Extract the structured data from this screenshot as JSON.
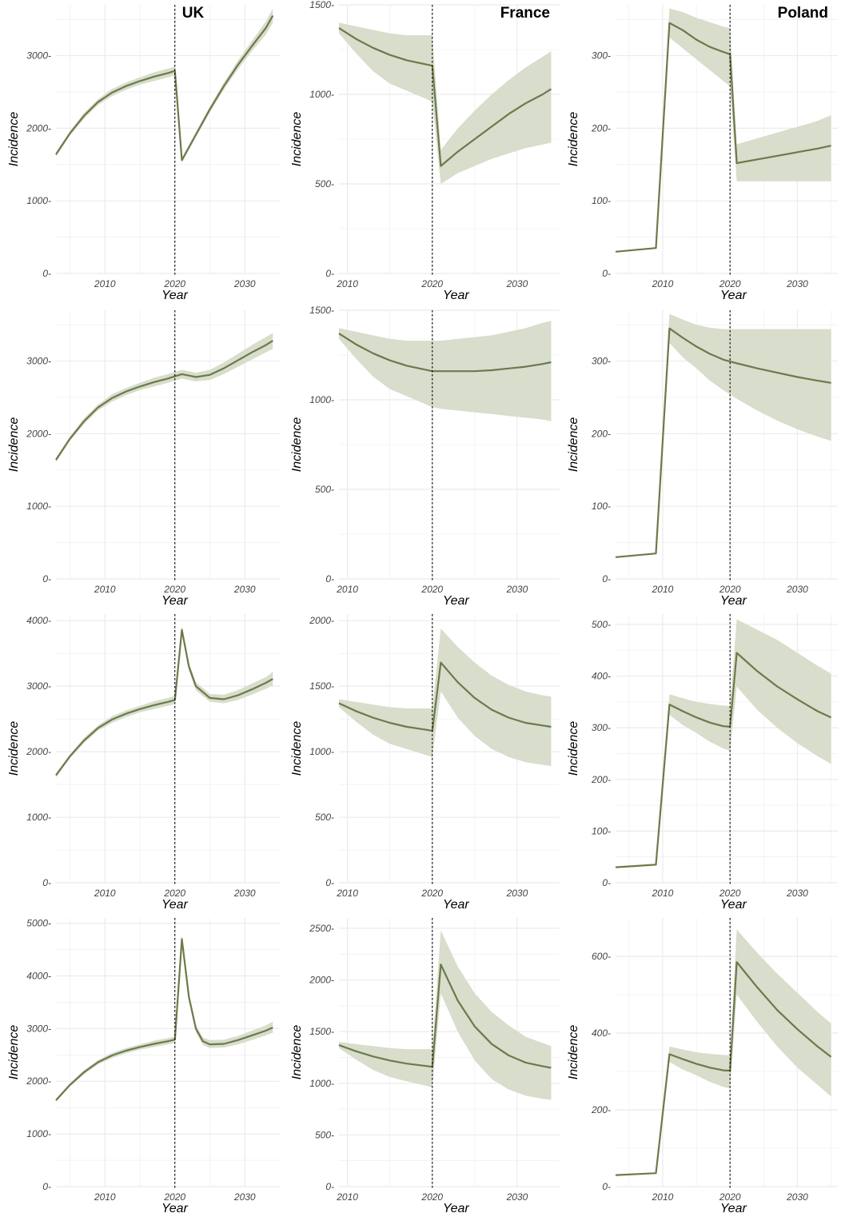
{
  "colors": {
    "line": "#6b7a4a",
    "band": "#d8ddcc",
    "grid": "#ebebeb",
    "vline": "#000000"
  },
  "chart_data": [
    {
      "type": "line",
      "country": "UK",
      "xlabel": "Year",
      "ylabel": "Incidence",
      "xlim": [
        2003,
        2035
      ],
      "ylim": [
        0,
        3700
      ],
      "yticks": [
        0,
        1000,
        2000,
        3000
      ],
      "xticks": [
        2010,
        2020,
        2030
      ],
      "vline": 2020,
      "x": [
        2003,
        2005,
        2007,
        2009,
        2011,
        2013,
        2015,
        2017,
        2019,
        2020,
        2021,
        2023,
        2025,
        2027,
        2029,
        2031,
        2033,
        2034
      ],
      "y": [
        1640,
        1930,
        2170,
        2360,
        2490,
        2580,
        2650,
        2710,
        2760,
        2790,
        1560,
        1910,
        2260,
        2580,
        2870,
        3130,
        3380,
        3550
      ],
      "lower": [
        1610,
        1900,
        2130,
        2320,
        2440,
        2530,
        2600,
        2650,
        2700,
        2730,
        1530,
        1880,
        2220,
        2530,
        2810,
        3060,
        3290,
        3450
      ],
      "upper": [
        1670,
        1960,
        2210,
        2400,
        2540,
        2630,
        2700,
        2770,
        2820,
        2850,
        1590,
        1950,
        2300,
        2630,
        2930,
        3200,
        3470,
        3650
      ]
    },
    {
      "type": "line",
      "country": "France",
      "xlabel": "Year",
      "ylabel": "Incidence",
      "xlim": [
        2009,
        2035
      ],
      "ylim": [
        0,
        1500
      ],
      "yticks": [
        0,
        500,
        1000,
        1500
      ],
      "xticks": [
        2010,
        2020,
        2030
      ],
      "vline": 2020,
      "x": [
        2009,
        2011,
        2013,
        2015,
        2017,
        2019,
        2020,
        2021,
        2023,
        2025,
        2027,
        2029,
        2031,
        2033,
        2034
      ],
      "y": [
        1370,
        1310,
        1260,
        1220,
        1190,
        1170,
        1160,
        600,
        680,
        750,
        820,
        890,
        950,
        1000,
        1030
      ],
      "lower": [
        1340,
        1230,
        1130,
        1060,
        1020,
        980,
        960,
        500,
        560,
        600,
        640,
        670,
        700,
        720,
        730
      ],
      "upper": [
        1400,
        1380,
        1360,
        1340,
        1330,
        1330,
        1330,
        690,
        810,
        910,
        1000,
        1080,
        1150,
        1210,
        1240
      ]
    },
    {
      "type": "line",
      "country": "Poland",
      "xlabel": "Year",
      "ylabel": "Incidence",
      "xlim": [
        2003,
        2036
      ],
      "ylim": [
        0,
        370
      ],
      "yticks": [
        0,
        100,
        200,
        300
      ],
      "xticks": [
        2010,
        2020,
        2030
      ],
      "vline": 2020,
      "x": [
        2003,
        2009,
        2011,
        2013,
        2015,
        2017,
        2019,
        2020,
        2021,
        2024,
        2027,
        2030,
        2033,
        2035
      ],
      "y": [
        30,
        35,
        345,
        335,
        322,
        312,
        305,
        302,
        152,
        157,
        162,
        167,
        172,
        176
      ],
      "lower": [
        30,
        35,
        325,
        310,
        295,
        280,
        265,
        258,
        127,
        127,
        127,
        127,
        127,
        127
      ],
      "upper": [
        30,
        35,
        365,
        360,
        352,
        346,
        340,
        338,
        178,
        186,
        194,
        202,
        210,
        218
      ]
    },
    {
      "type": "line",
      "country": "",
      "xlabel": "Year",
      "ylabel": "Incidence",
      "xlim": [
        2003,
        2035
      ],
      "ylim": [
        0,
        3700
      ],
      "yticks": [
        0,
        1000,
        2000,
        3000
      ],
      "xticks": [
        2010,
        2020,
        2030
      ],
      "vline": 2020,
      "x": [
        2003,
        2005,
        2007,
        2009,
        2011,
        2013,
        2015,
        2017,
        2019,
        2020,
        2021,
        2022,
        2023,
        2025,
        2027,
        2029,
        2031,
        2033,
        2034
      ],
      "y": [
        1640,
        1930,
        2170,
        2360,
        2490,
        2580,
        2650,
        2710,
        2760,
        2790,
        2820,
        2800,
        2780,
        2810,
        2900,
        3010,
        3120,
        3220,
        3280
      ],
      "lower": [
        1610,
        1900,
        2130,
        2320,
        2440,
        2530,
        2600,
        2650,
        2700,
        2730,
        2760,
        2740,
        2720,
        2740,
        2820,
        2920,
        3020,
        3120,
        3170
      ],
      "upper": [
        1670,
        1960,
        2210,
        2400,
        2540,
        2630,
        2700,
        2770,
        2820,
        2850,
        2880,
        2860,
        2840,
        2880,
        2980,
        3100,
        3220,
        3330,
        3390
      ]
    },
    {
      "type": "line",
      "country": "",
      "xlabel": "Year",
      "ylabel": "Incidence",
      "xlim": [
        2009,
        2035
      ],
      "ylim": [
        0,
        1500
      ],
      "yticks": [
        0,
        500,
        1000,
        1500
      ],
      "xticks": [
        2010,
        2020,
        2030
      ],
      "vline": 2020,
      "x": [
        2009,
        2011,
        2013,
        2015,
        2017,
        2019,
        2020,
        2021,
        2023,
        2025,
        2027,
        2029,
        2031,
        2033,
        2034
      ],
      "y": [
        1370,
        1310,
        1260,
        1220,
        1190,
        1170,
        1160,
        1160,
        1160,
        1160,
        1165,
        1175,
        1185,
        1200,
        1210
      ],
      "lower": [
        1340,
        1230,
        1130,
        1060,
        1020,
        980,
        960,
        950,
        940,
        930,
        920,
        910,
        900,
        890,
        880
      ],
      "upper": [
        1400,
        1380,
        1360,
        1340,
        1330,
        1330,
        1330,
        1330,
        1340,
        1350,
        1360,
        1380,
        1400,
        1430,
        1440
      ]
    },
    {
      "type": "line",
      "country": "",
      "xlabel": "Year",
      "ylabel": "Incidence",
      "xlim": [
        2003,
        2036
      ],
      "ylim": [
        0,
        370
      ],
      "yticks": [
        0,
        100,
        200,
        300
      ],
      "xticks": [
        2010,
        2020,
        2030
      ],
      "vline": 2020,
      "x": [
        2003,
        2009,
        2011,
        2013,
        2015,
        2017,
        2019,
        2021,
        2024,
        2027,
        2030,
        2033,
        2035
      ],
      "y": [
        30,
        35,
        345,
        332,
        320,
        310,
        302,
        297,
        290,
        284,
        278,
        273,
        270
      ],
      "lower": [
        30,
        35,
        325,
        305,
        290,
        273,
        260,
        248,
        232,
        218,
        206,
        196,
        190
      ],
      "upper": [
        30,
        35,
        365,
        357,
        350,
        346,
        344,
        344,
        344,
        344,
        344,
        344,
        344
      ]
    },
    {
      "type": "line",
      "country": "",
      "xlabel": "Year",
      "ylabel": "Incidence",
      "xlim": [
        2003,
        2035
      ],
      "ylim": [
        0,
        4100
      ],
      "yticks": [
        0,
        1000,
        2000,
        3000,
        4000
      ],
      "xticks": [
        2010,
        2020,
        2030
      ],
      "vline": 2020,
      "x": [
        2003,
        2005,
        2007,
        2009,
        2011,
        2013,
        2015,
        2017,
        2019,
        2020,
        2021,
        2022,
        2023,
        2025,
        2027,
        2029,
        2031,
        2033,
        2034
      ],
      "y": [
        1640,
        1930,
        2170,
        2360,
        2490,
        2580,
        2650,
        2710,
        2760,
        2790,
        3860,
        3300,
        3000,
        2820,
        2800,
        2860,
        2950,
        3050,
        3110
      ],
      "lower": [
        1610,
        1900,
        2130,
        2320,
        2440,
        2530,
        2600,
        2650,
        2700,
        2730,
        3800,
        3240,
        2940,
        2760,
        2740,
        2790,
        2870,
        2960,
        3010
      ],
      "upper": [
        1670,
        1960,
        2210,
        2400,
        2540,
        2630,
        2700,
        2770,
        2820,
        2850,
        3920,
        3360,
        3060,
        2880,
        2870,
        2940,
        3040,
        3140,
        3220
      ]
    },
    {
      "type": "line",
      "country": "",
      "xlabel": "Year",
      "ylabel": "Incidence",
      "xlim": [
        2009,
        2035
      ],
      "ylim": [
        0,
        2050
      ],
      "yticks": [
        0,
        500,
        1000,
        1500,
        2000
      ],
      "xticks": [
        2010,
        2020,
        2030
      ],
      "vline": 2020,
      "x": [
        2009,
        2011,
        2013,
        2015,
        2017,
        2019,
        2020,
        2021,
        2023,
        2025,
        2027,
        2029,
        2031,
        2033,
        2034
      ],
      "y": [
        1370,
        1310,
        1260,
        1220,
        1190,
        1170,
        1160,
        1680,
        1530,
        1410,
        1320,
        1260,
        1220,
        1200,
        1190
      ],
      "lower": [
        1340,
        1230,
        1130,
        1060,
        1020,
        980,
        960,
        1460,
        1260,
        1120,
        1020,
        960,
        920,
        900,
        890
      ],
      "upper": [
        1400,
        1380,
        1360,
        1340,
        1330,
        1330,
        1330,
        1940,
        1800,
        1680,
        1580,
        1510,
        1460,
        1430,
        1420
      ]
    },
    {
      "type": "line",
      "country": "",
      "xlabel": "Year",
      "ylabel": "Incidence",
      "xlim": [
        2003,
        2036
      ],
      "ylim": [
        0,
        520
      ],
      "yticks": [
        0,
        100,
        200,
        300,
        400,
        500
      ],
      "xticks": [
        2010,
        2020,
        2030
      ],
      "vline": 2020,
      "x": [
        2003,
        2009,
        2011,
        2013,
        2015,
        2017,
        2019,
        2020,
        2021,
        2024,
        2027,
        2030,
        2033,
        2035
      ],
      "y": [
        30,
        35,
        345,
        332,
        320,
        310,
        303,
        302,
        445,
        410,
        380,
        355,
        332,
        320
      ],
      "lower": [
        30,
        35,
        325,
        305,
        290,
        273,
        260,
        256,
        380,
        335,
        300,
        270,
        245,
        230
      ],
      "upper": [
        30,
        35,
        365,
        357,
        350,
        346,
        343,
        342,
        510,
        490,
        470,
        445,
        420,
        405
      ]
    },
    {
      "type": "line",
      "country": "",
      "xlabel": "Year",
      "ylabel": "Incidence",
      "xlim": [
        2003,
        2035
      ],
      "ylim": [
        0,
        5100
      ],
      "yticks": [
        0,
        1000,
        2000,
        3000,
        4000,
        5000
      ],
      "xticks": [
        2010,
        2020,
        2030
      ],
      "vline": 2020,
      "x": [
        2003,
        2005,
        2007,
        2009,
        2011,
        2013,
        2015,
        2017,
        2019,
        2020,
        2021,
        2022,
        2023,
        2024,
        2025,
        2027,
        2029,
        2031,
        2033,
        2034
      ],
      "y": [
        1640,
        1930,
        2170,
        2360,
        2490,
        2580,
        2650,
        2710,
        2760,
        2790,
        4700,
        3600,
        3000,
        2760,
        2700,
        2710,
        2780,
        2870,
        2960,
        3020
      ],
      "lower": [
        1610,
        1900,
        2130,
        2320,
        2440,
        2530,
        2600,
        2650,
        2700,
        2730,
        4620,
        3530,
        2930,
        2690,
        2630,
        2640,
        2700,
        2780,
        2870,
        2920
      ],
      "upper": [
        1670,
        1960,
        2210,
        2400,
        2540,
        2630,
        2700,
        2770,
        2820,
        2850,
        4780,
        3670,
        3070,
        2830,
        2780,
        2790,
        2860,
        2960,
        3060,
        3130
      ]
    },
    {
      "type": "line",
      "country": "",
      "xlabel": "Year",
      "ylabel": "Incidence",
      "xlim": [
        2009,
        2035
      ],
      "ylim": [
        0,
        2600
      ],
      "yticks": [
        0,
        500,
        1000,
        1500,
        2000,
        2500
      ],
      "xticks": [
        2010,
        2020,
        2030
      ],
      "vline": 2020,
      "x": [
        2009,
        2011,
        2013,
        2015,
        2017,
        2019,
        2020,
        2021,
        2023,
        2025,
        2027,
        2029,
        2031,
        2033,
        2034
      ],
      "y": [
        1370,
        1310,
        1260,
        1220,
        1190,
        1170,
        1160,
        2150,
        1800,
        1550,
        1380,
        1270,
        1200,
        1165,
        1150
      ],
      "lower": [
        1340,
        1230,
        1130,
        1060,
        1020,
        980,
        960,
        1870,
        1500,
        1220,
        1040,
        940,
        880,
        850,
        840
      ],
      "upper": [
        1400,
        1380,
        1360,
        1340,
        1330,
        1330,
        1330,
        2480,
        2130,
        1870,
        1690,
        1560,
        1450,
        1390,
        1360
      ]
    },
    {
      "type": "line",
      "country": "",
      "xlabel": "Year",
      "ylabel": "Incidence",
      "xlim": [
        2003,
        2036
      ],
      "ylim": [
        0,
        700
      ],
      "yticks": [
        0,
        200,
        400,
        600
      ],
      "xticks": [
        2010,
        2020,
        2030
      ],
      "vline": 2020,
      "x": [
        2003,
        2009,
        2011,
        2013,
        2015,
        2017,
        2019,
        2020,
        2021,
        2024,
        2027,
        2030,
        2033,
        2035
      ],
      "y": [
        30,
        35,
        345,
        332,
        320,
        310,
        303,
        302,
        585,
        520,
        460,
        410,
        365,
        338
      ],
      "lower": [
        30,
        35,
        325,
        305,
        290,
        273,
        260,
        256,
        500,
        430,
        365,
        310,
        265,
        235
      ],
      "upper": [
        30,
        35,
        365,
        357,
        350,
        346,
        343,
        342,
        670,
        610,
        555,
        505,
        455,
        425
      ]
    }
  ]
}
